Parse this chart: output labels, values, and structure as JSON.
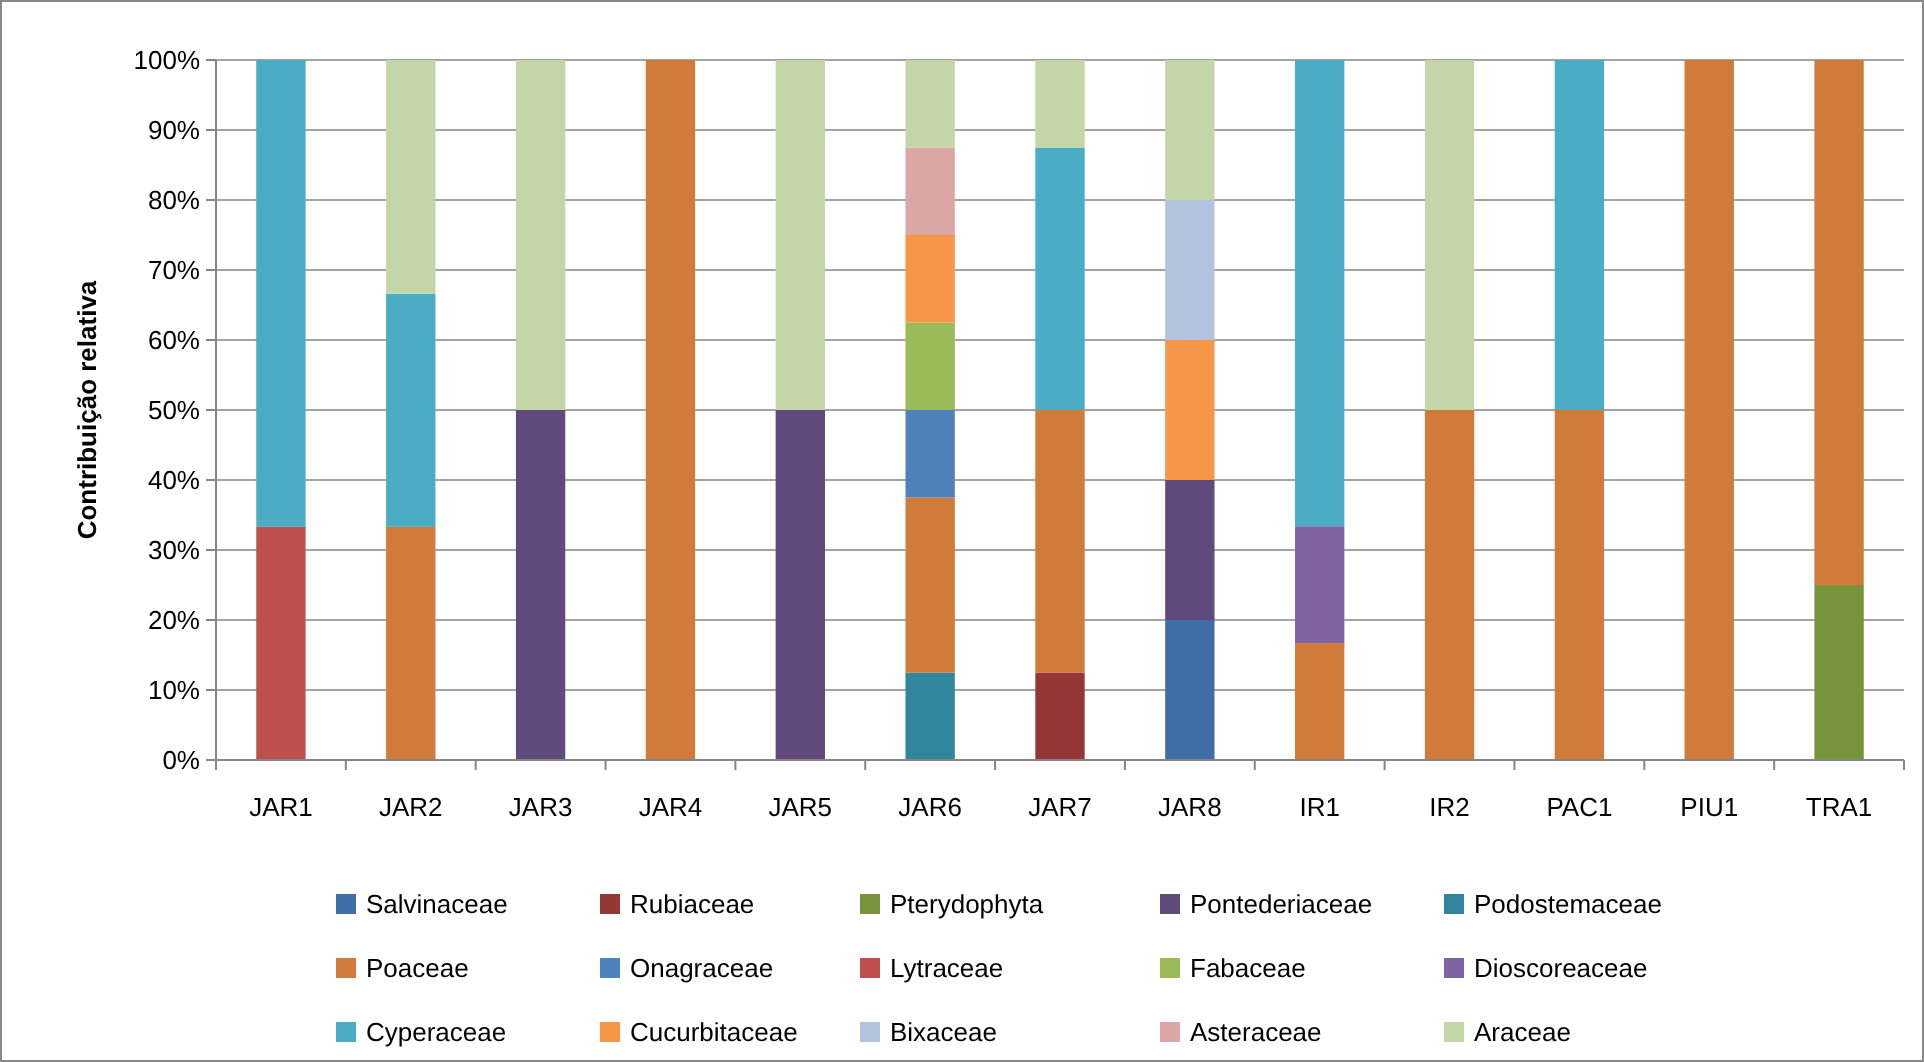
{
  "chart_data": {
    "type": "bar",
    "stacked": true,
    "ylabel": "Contribuição relativa",
    "categories": [
      "JAR1",
      "JAR2",
      "JAR3",
      "JAR4",
      "JAR5",
      "JAR6",
      "JAR7",
      "JAR8",
      "IR1",
      "IR2",
      "PAC1",
      "PIU1",
      "TRA1"
    ],
    "ylim": [
      0,
      100
    ],
    "yticks": [
      {
        "value": 0,
        "label": "0%"
      },
      {
        "value": 10,
        "label": "10%"
      },
      {
        "value": 20,
        "label": "20%"
      },
      {
        "value": 30,
        "label": "30%"
      },
      {
        "value": 40,
        "label": "40%"
      },
      {
        "value": 50,
        "label": "50%"
      },
      {
        "value": 60,
        "label": "60%"
      },
      {
        "value": 70,
        "label": "70%"
      },
      {
        "value": 80,
        "label": "80%"
      },
      {
        "value": 90,
        "label": "90%"
      },
      {
        "value": 100,
        "label": "100%"
      }
    ],
    "grid": "y",
    "legend": "bottom",
    "series": [
      {
        "name": "Salvinaceae",
        "color": "#3f6ea6",
        "values": [
          null,
          null,
          null,
          null,
          null,
          null,
          null,
          20,
          null,
          null,
          null,
          null,
          null
        ]
      },
      {
        "name": "Rubiaceae",
        "color": "#953735",
        "values": [
          null,
          null,
          null,
          null,
          null,
          null,
          12.5,
          null,
          null,
          null,
          null,
          null,
          null
        ]
      },
      {
        "name": "Pterydophyta",
        "color": "#77933c",
        "values": [
          null,
          null,
          null,
          null,
          null,
          null,
          null,
          null,
          null,
          null,
          null,
          null,
          25
        ]
      },
      {
        "name": "Pontederiaceae",
        "color": "#604a7b",
        "values": [
          null,
          null,
          50,
          null,
          50,
          null,
          null,
          20,
          null,
          null,
          null,
          null,
          null
        ]
      },
      {
        "name": "Podostemaceae",
        "color": "#31859c",
        "values": [
          null,
          null,
          null,
          null,
          null,
          12.5,
          null,
          null,
          null,
          null,
          null,
          null,
          null
        ]
      },
      {
        "name": "Poaceae",
        "color": "#d07b3a",
        "values": [
          null,
          33.3,
          null,
          100,
          null,
          25,
          37.5,
          null,
          16.7,
          50,
          50,
          100,
          75
        ]
      },
      {
        "name": "Onagraceae",
        "color": "#4f81bd",
        "values": [
          null,
          null,
          null,
          null,
          null,
          12.5,
          null,
          null,
          null,
          null,
          null,
          null,
          null
        ]
      },
      {
        "name": "Lytraceae",
        "color": "#c0504d",
        "values": [
          33.3,
          null,
          null,
          null,
          null,
          null,
          null,
          null,
          null,
          null,
          null,
          null,
          null
        ]
      },
      {
        "name": "Fabaceae",
        "color": "#9bbb59",
        "values": [
          null,
          null,
          null,
          null,
          null,
          12.5,
          null,
          null,
          null,
          null,
          null,
          null,
          null
        ]
      },
      {
        "name": "Dioscoreaceae",
        "color": "#8064a2",
        "values": [
          null,
          null,
          null,
          null,
          null,
          null,
          null,
          null,
          16.7,
          null,
          null,
          null,
          null
        ]
      },
      {
        "name": "Cyperaceae",
        "color": "#4bacc6",
        "values": [
          66.7,
          33.3,
          null,
          null,
          null,
          null,
          37.5,
          null,
          66.6,
          null,
          50,
          null,
          null
        ]
      },
      {
        "name": "Cucurbitaceae",
        "color": "#f79646",
        "values": [
          null,
          null,
          null,
          null,
          null,
          12.5,
          null,
          20,
          null,
          null,
          null,
          null,
          null
        ]
      },
      {
        "name": "Bixaceae",
        "color": "#b3c2df",
        "values": [
          null,
          null,
          null,
          null,
          null,
          null,
          null,
          20,
          null,
          null,
          null,
          null,
          null
        ]
      },
      {
        "name": "Asteraceae",
        "color": "#dba7a5",
        "values": [
          null,
          null,
          null,
          null,
          null,
          12.5,
          null,
          null,
          null,
          null,
          null,
          null,
          null
        ]
      },
      {
        "name": "Araceae",
        "color": "#c4d6a8",
        "values": [
          null,
          33.4,
          50,
          null,
          50,
          12.5,
          12.5,
          20,
          null,
          50,
          null,
          null,
          null
        ]
      }
    ]
  }
}
